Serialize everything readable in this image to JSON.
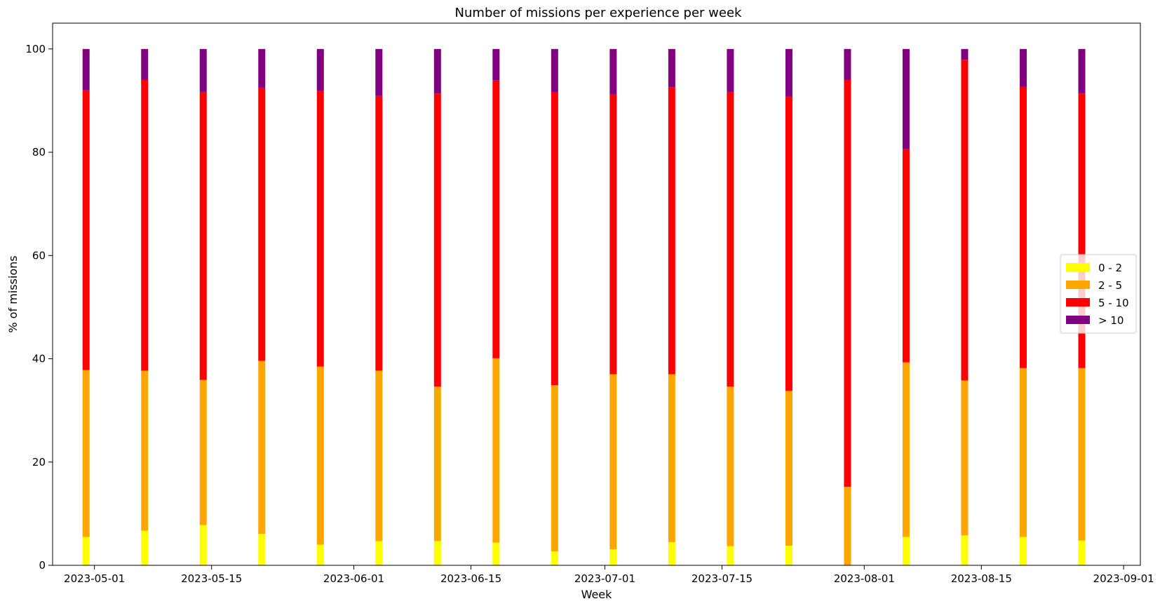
{
  "chart_data": {
    "type": "bar",
    "stacked": true,
    "title": "Number of missions per experience per week",
    "xlabel": "Week",
    "ylabel": "% of missions",
    "ylim": [
      0,
      105
    ],
    "yticks": [
      0,
      20,
      40,
      60,
      80,
      100
    ],
    "xlim": [
      "2023-04-26",
      "2023-09-03"
    ],
    "xticks": [
      "2023-05-01",
      "2023-05-15",
      "2023-06-01",
      "2023-06-15",
      "2023-07-01",
      "2023-07-15",
      "2023-08-01",
      "2023-08-15",
      "2023-09-01"
    ],
    "grid": false,
    "legend_position": "center-right",
    "x": [
      "2023-04-30",
      "2023-05-07",
      "2023-05-14",
      "2023-05-21",
      "2023-05-28",
      "2023-06-04",
      "2023-06-11",
      "2023-06-18",
      "2023-06-25",
      "2023-07-02",
      "2023-07-09",
      "2023-07-16",
      "2023-07-23",
      "2023-07-30",
      "2023-08-06",
      "2023-08-13",
      "2023-08-20",
      "2023-08-27"
    ],
    "series": [
      {
        "name": "0 - 2",
        "color": "#ffff00",
        "values": [
          5.5,
          6.7,
          7.8,
          6.1,
          4.0,
          4.7,
          4.7,
          4.4,
          2.7,
          3.1,
          4.5,
          3.7,
          3.8,
          0.0,
          5.5,
          5.8,
          5.5,
          4.8
        ]
      },
      {
        "name": "2 - 5",
        "color": "#ffa500",
        "values": [
          32.3,
          31.0,
          28.1,
          33.5,
          34.5,
          33.0,
          29.9,
          35.7,
          32.2,
          33.9,
          32.5,
          30.9,
          30.0,
          15.2,
          33.8,
          30.0,
          32.7,
          33.4
        ]
      },
      {
        "name": "5 - 10",
        "color": "#ff0000",
        "values": [
          54.2,
          56.3,
          55.8,
          52.8,
          53.4,
          53.2,
          56.8,
          53.8,
          56.7,
          54.2,
          55.6,
          57.1,
          57.0,
          78.8,
          41.3,
          62.1,
          54.5,
          53.2
        ]
      },
      {
        "name": "> 10",
        "color": "#800080",
        "values": [
          8.0,
          6.0,
          8.3,
          7.6,
          8.1,
          9.1,
          8.6,
          6.1,
          8.4,
          8.8,
          7.4,
          8.3,
          9.2,
          6.0,
          19.4,
          2.1,
          7.3,
          8.6
        ]
      }
    ]
  }
}
